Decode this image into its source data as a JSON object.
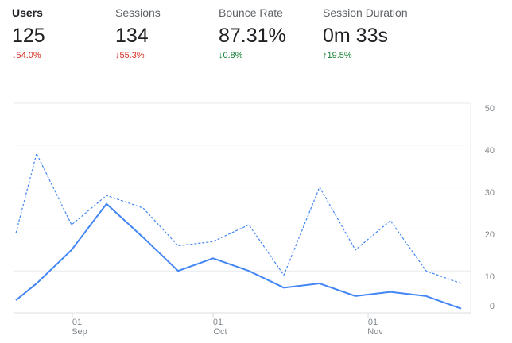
{
  "metrics": [
    {
      "label": "Users",
      "value": "125",
      "arrow": "↓",
      "change": "54.0%",
      "color": "#d93025",
      "selected": true
    },
    {
      "label": "Sessions",
      "value": "134",
      "arrow": "↓",
      "change": "55.3%",
      "color": "#d93025",
      "selected": false
    },
    {
      "label": "Bounce Rate",
      "value": "87.31%",
      "arrow": "↓",
      "change": "0.8%",
      "color": "#188038",
      "selected": false
    },
    {
      "label": "Session Duration",
      "value": "0m 33s",
      "arrow": "↑",
      "change": "19.5%",
      "color": "#188038",
      "selected": false
    }
  ],
  "chart_data": {
    "type": "line",
    "x": [
      "Aug 24",
      "Aug 27",
      "Sep 03",
      "Sep 10",
      "Sep 17",
      "Sep 24",
      "Oct 01",
      "Oct 08",
      "Oct 15",
      "Oct 22",
      "Oct 29",
      "Nov 05",
      "Nov 12",
      "Nov 19"
    ],
    "series": [
      {
        "style": "solid",
        "color": "#4285f4",
        "values": [
          3,
          7,
          15,
          26,
          18,
          10,
          13,
          10,
          6,
          7,
          4,
          5,
          4,
          1
        ]
      },
      {
        "style": "dashed",
        "color": "#4285f4",
        "values": [
          19,
          38,
          21,
          28,
          25,
          16,
          17,
          21,
          9,
          30,
          15,
          22,
          10,
          7
        ]
      }
    ],
    "ylim": [
      0,
      50
    ],
    "yticks": [
      "50",
      "40",
      "30",
      "20",
      "10",
      "0"
    ],
    "xticks": [
      {
        "day": "01",
        "month": "Sep"
      },
      {
        "day": "01",
        "month": "Oct"
      },
      {
        "day": "01",
        "month": "Nov"
      }
    ],
    "grid": true
  }
}
